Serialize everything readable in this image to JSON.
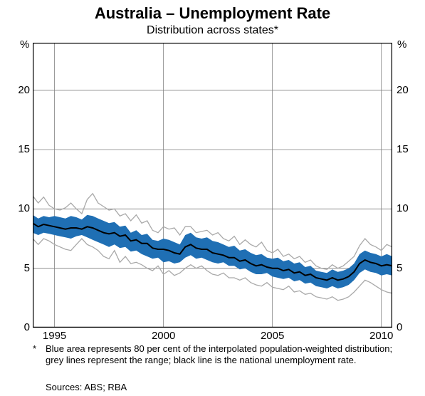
{
  "title": "Australia – Unemployment Rate",
  "subtitle": "Distribution across states*",
  "axis_label": "%",
  "footnote_marker": "*",
  "footnote_text": "Blue area represents 80 per cent of the interpolated population-weighted distribution; grey lines represent the range; black line is the national unemployment rate.",
  "sources": "Sources: ABS; RBA",
  "chart": {
    "type": "line-area",
    "xlim": [
      1994,
      2010.5
    ],
    "ylim": [
      0,
      24
    ],
    "yticks": [
      0,
      5,
      10,
      15,
      20
    ],
    "xticks": [
      1995,
      2000,
      2005,
      2010
    ],
    "background_color": "#ffffff",
    "grid_color": "#808080",
    "border_color": "#000000",
    "area_fill": "#1f6fb4",
    "grey_line_color": "#a9a9a9",
    "black_line_color": "#000000",
    "grey_line_width": 1.3,
    "black_line_width": 2.0,
    "title_fontsize": 22,
    "subtitle_fontsize": 16,
    "tick_fontsize": 15,
    "x": [
      1994,
      1994.25,
      1994.5,
      1994.75,
      1995,
      1995.25,
      1995.5,
      1995.75,
      1996,
      1996.25,
      1996.5,
      1996.75,
      1997,
      1997.25,
      1997.5,
      1997.75,
      1998,
      1998.25,
      1998.5,
      1998.75,
      1999,
      1999.25,
      1999.5,
      1999.75,
      2000,
      2000.25,
      2000.5,
      2000.75,
      2001,
      2001.25,
      2001.5,
      2001.75,
      2002,
      2002.25,
      2002.5,
      2002.75,
      2003,
      2003.25,
      2003.5,
      2003.75,
      2004,
      2004.25,
      2004.5,
      2004.75,
      2005,
      2005.25,
      2005.5,
      2005.75,
      2006,
      2006.25,
      2006.5,
      2006.75,
      2007,
      2007.25,
      2007.5,
      2007.75,
      2008,
      2008.25,
      2008.5,
      2008.75,
      2009,
      2009.25,
      2009.5,
      2009.75,
      2010,
      2010.25,
      2010.5
    ],
    "grey_upper": [
      11.1,
      10.5,
      11.0,
      10.3,
      10.0,
      9.9,
      10.1,
      10.5,
      10.0,
      9.6,
      10.8,
      11.3,
      10.5,
      10.2,
      9.9,
      10.0,
      9.4,
      9.6,
      9.0,
      9.5,
      8.8,
      9.0,
      8.2,
      8.0,
      8.5,
      8.3,
      8.4,
      7.8,
      8.5,
      8.5,
      8.0,
      8.1,
      8.2,
      7.8,
      8.0,
      7.5,
      7.3,
      7.7,
      7.0,
      7.4,
      7.0,
      6.8,
      7.2,
      6.5,
      6.3,
      6.6,
      6.0,
      6.2,
      5.8,
      6.0,
      5.5,
      5.7,
      5.2,
      5.0,
      4.9,
      5.3,
      5.0,
      5.2,
      5.6,
      6.0,
      6.9,
      7.5,
      7.0,
      6.8,
      6.5,
      7.0,
      6.8
    ],
    "grey_lower": [
      7.5,
      7.0,
      7.5,
      7.3,
      7.0,
      6.8,
      6.6,
      6.5,
      7.0,
      7.5,
      7.0,
      6.8,
      6.5,
      6.0,
      5.8,
      6.5,
      5.5,
      6.0,
      5.4,
      5.5,
      5.3,
      5.0,
      4.8,
      5.2,
      4.5,
      4.8,
      4.4,
      4.6,
      5.0,
      5.3,
      5.0,
      5.2,
      4.8,
      4.5,
      4.4,
      4.6,
      4.2,
      4.2,
      4.0,
      4.2,
      3.8,
      3.6,
      3.5,
      3.8,
      3.4,
      3.3,
      3.2,
      3.5,
      3.0,
      3.1,
      2.8,
      2.9,
      2.6,
      2.5,
      2.4,
      2.6,
      2.3,
      2.4,
      2.6,
      3.0,
      3.5,
      4.0,
      3.8,
      3.5,
      3.2,
      3.0,
      2.9
    ],
    "band_upper": [
      9.5,
      9.2,
      9.4,
      9.3,
      9.4,
      9.3,
      9.2,
      9.4,
      9.3,
      9.1,
      9.5,
      9.4,
      9.2,
      9.0,
      8.8,
      8.9,
      8.5,
      8.6,
      8.0,
      8.2,
      7.8,
      7.9,
      7.4,
      7.3,
      7.5,
      7.4,
      7.2,
      7.0,
      7.8,
      8.0,
      7.6,
      7.5,
      7.6,
      7.3,
      7.2,
      7.0,
      6.8,
      6.9,
      6.5,
      6.6,
      6.3,
      6.1,
      6.2,
      5.9,
      5.8,
      5.9,
      5.6,
      5.7,
      5.4,
      5.5,
      5.1,
      5.2,
      4.8,
      4.7,
      4.6,
      4.9,
      4.7,
      4.8,
      5.0,
      5.4,
      6.2,
      6.5,
      6.3,
      6.2,
      6.0,
      6.2,
      6.0
    ],
    "band_lower": [
      8.0,
      7.8,
      8.0,
      7.9,
      7.8,
      7.7,
      7.6,
      7.5,
      7.7,
      7.8,
      7.6,
      7.4,
      7.2,
      7.0,
      6.8,
      7.0,
      6.7,
      6.8,
      6.4,
      6.5,
      6.2,
      6.0,
      5.8,
      5.9,
      5.5,
      5.6,
      5.4,
      5.5,
      5.9,
      6.1,
      5.8,
      5.9,
      5.7,
      5.5,
      5.4,
      5.5,
      5.2,
      5.2,
      4.9,
      5.0,
      4.7,
      4.5,
      4.5,
      4.6,
      4.3,
      4.2,
      4.1,
      4.2,
      3.9,
      4.0,
      3.7,
      3.8,
      3.5,
      3.4,
      3.3,
      3.5,
      3.3,
      3.4,
      3.6,
      4.0,
      4.6,
      4.9,
      4.7,
      4.6,
      4.4,
      4.5,
      4.4
    ],
    "black": [
      8.8,
      8.5,
      8.7,
      8.6,
      8.5,
      8.4,
      8.3,
      8.4,
      8.4,
      8.3,
      8.5,
      8.4,
      8.2,
      8.0,
      7.9,
      8.0,
      7.7,
      7.8,
      7.3,
      7.4,
      7.1,
      7.1,
      6.7,
      6.6,
      6.6,
      6.5,
      6.3,
      6.2,
      6.8,
      7.0,
      6.7,
      6.6,
      6.6,
      6.3,
      6.2,
      6.1,
      5.9,
      5.9,
      5.6,
      5.7,
      5.4,
      5.2,
      5.3,
      5.1,
      5.0,
      5.0,
      4.8,
      4.9,
      4.6,
      4.7,
      4.4,
      4.5,
      4.2,
      4.1,
      4.0,
      4.2,
      4.0,
      4.1,
      4.3,
      4.7,
      5.4,
      5.7,
      5.5,
      5.4,
      5.2,
      5.3,
      5.2
    ]
  }
}
